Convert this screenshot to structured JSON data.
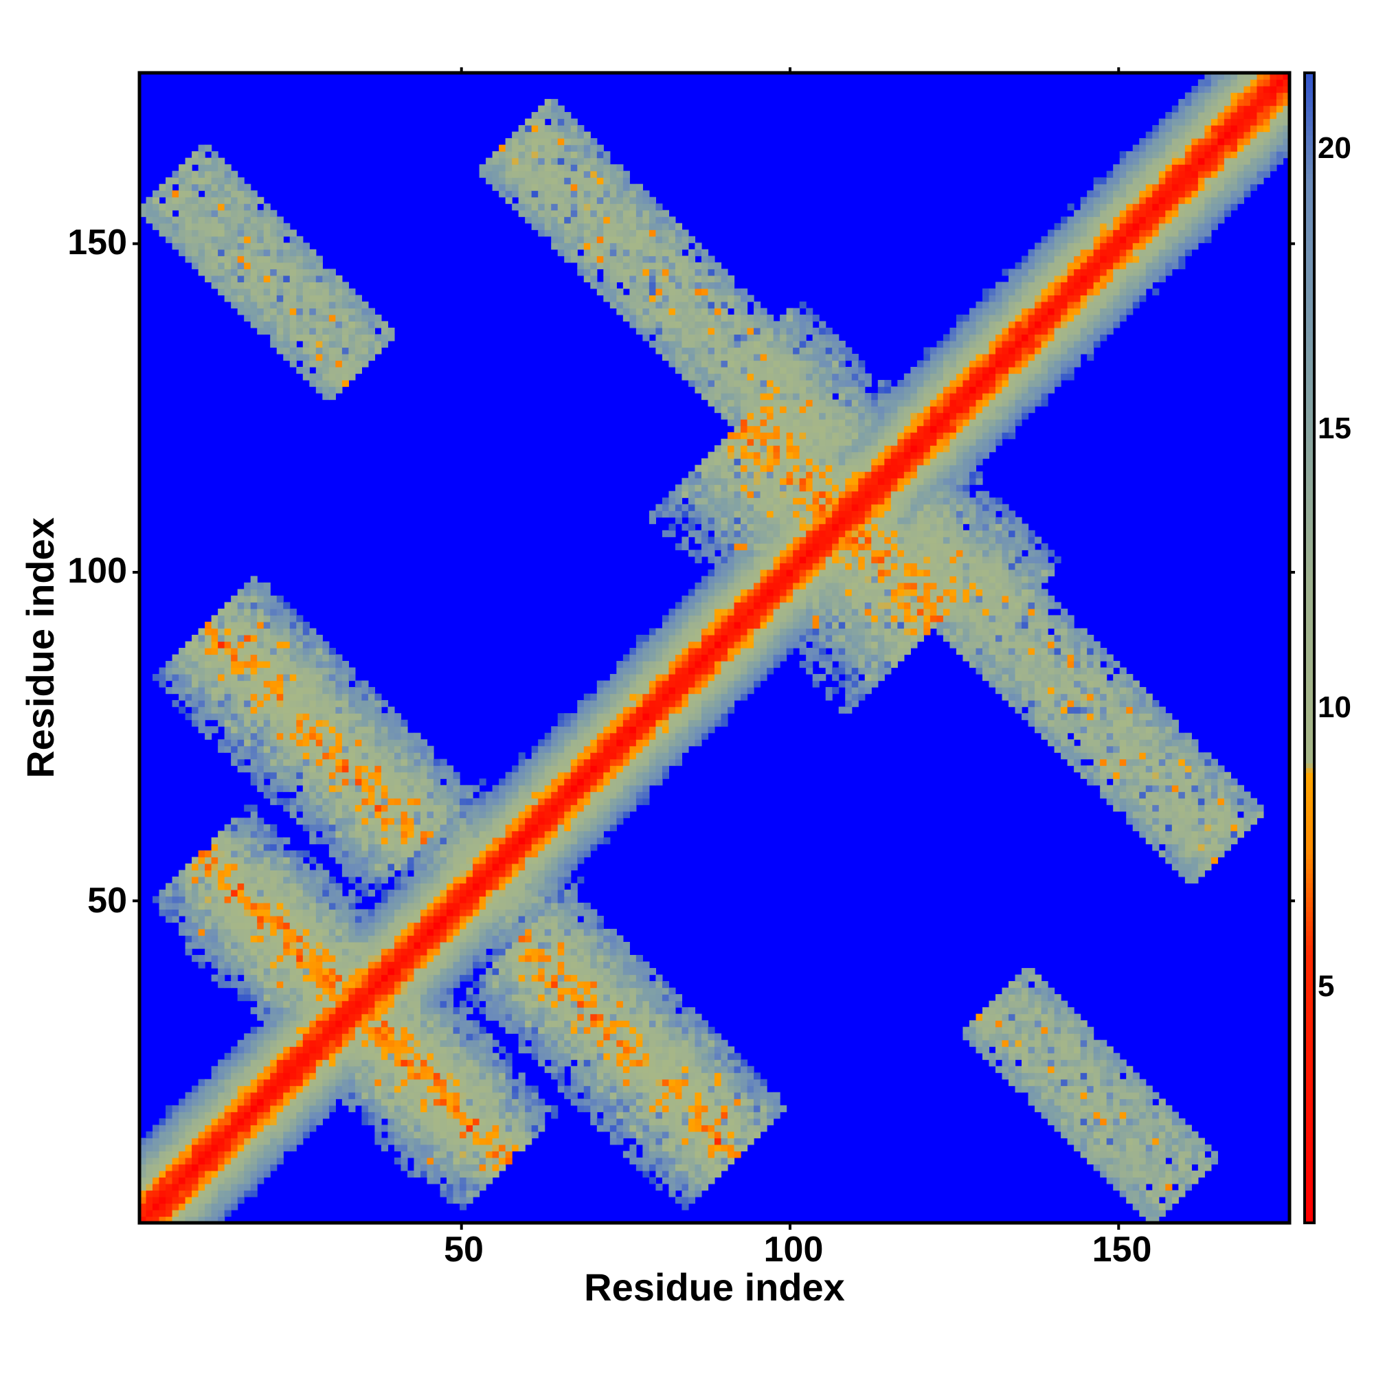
{
  "chart_data": {
    "type": "heatmap",
    "title": "",
    "xlabel": "Residue index",
    "ylabel": "Residue index",
    "xlim": [
      1,
      176
    ],
    "ylim": [
      1,
      176
    ],
    "x_ticks": [
      "50",
      "100",
      "150"
    ],
    "y_ticks": [
      "50",
      "100",
      "150"
    ],
    "n_residues": 176,
    "colorbar": {
      "vmin": 0,
      "vmax": 21.5,
      "ticks": [
        "5",
        "10",
        "15",
        "20"
      ],
      "scale": [
        {
          "value": 0,
          "color": "#ff0000"
        },
        {
          "value": 5,
          "color": "#ff2a00"
        },
        {
          "value": 7,
          "color": "#ff8c00"
        },
        {
          "value": 8.4,
          "color": "#ffa500"
        },
        {
          "value": 8.6,
          "color": "#a7b787"
        },
        {
          "value": 12,
          "color": "#9fb28f"
        },
        {
          "value": 16,
          "color": "#7f9fa8"
        },
        {
          "value": 19.5,
          "color": "#6b8bbb"
        },
        {
          "value": 21.5,
          "color": "#3355cc"
        }
      ],
      "out_of_range_color": "#0000ff"
    },
    "contact_bands": [
      {
        "center": [
          1,
          1
        ],
        "direction": [
          1,
          1
        ],
        "length": 175,
        "width": 13,
        "intensity": 1.0
      },
      {
        "center": [
          36,
          30
        ],
        "direction": [
          1,
          -1
        ],
        "length": 60,
        "width": 12,
        "intensity": 0.5
      },
      {
        "center": [
          30,
          38
        ],
        "direction": [
          -1,
          1
        ],
        "length": 56,
        "width": 12,
        "intensity": 0.5
      },
      {
        "center": [
          75,
          27
        ],
        "direction": [
          -1,
          1
        ],
        "length": 48,
        "width": 12,
        "intensity": 0.45
      },
      {
        "center": [
          27,
          75
        ],
        "direction": [
          1,
          -1
        ],
        "length": 48,
        "width": 12,
        "intensity": 0.45
      },
      {
        "center": [
          30,
          77
        ],
        "direction": [
          1,
          -1
        ],
        "length": 60,
        "width": 11,
        "intensity": 0.4
      },
      {
        "center": [
          22,
          150
        ],
        "direction": [
          1,
          -1
        ],
        "length": 45,
        "width": 12,
        "intensity": 0.45
      },
      {
        "center": [
          85,
          145
        ],
        "direction": [
          1,
          -1
        ],
        "length": 70,
        "width": 12,
        "intensity": 0.45
      },
      {
        "center": [
          140,
          80
        ],
        "direction": [
          1,
          -1
        ],
        "length": 80,
        "width": 12,
        "intensity": 0.45
      },
      {
        "center": [
          140,
          20
        ],
        "direction": [
          1,
          -1
        ],
        "length": 50,
        "width": 12,
        "intensity": 0.45
      },
      {
        "center": [
          110,
          105
        ],
        "direction": [
          -1,
          1
        ],
        "length": 50,
        "width": 20,
        "intensity": 0.25
      }
    ]
  }
}
